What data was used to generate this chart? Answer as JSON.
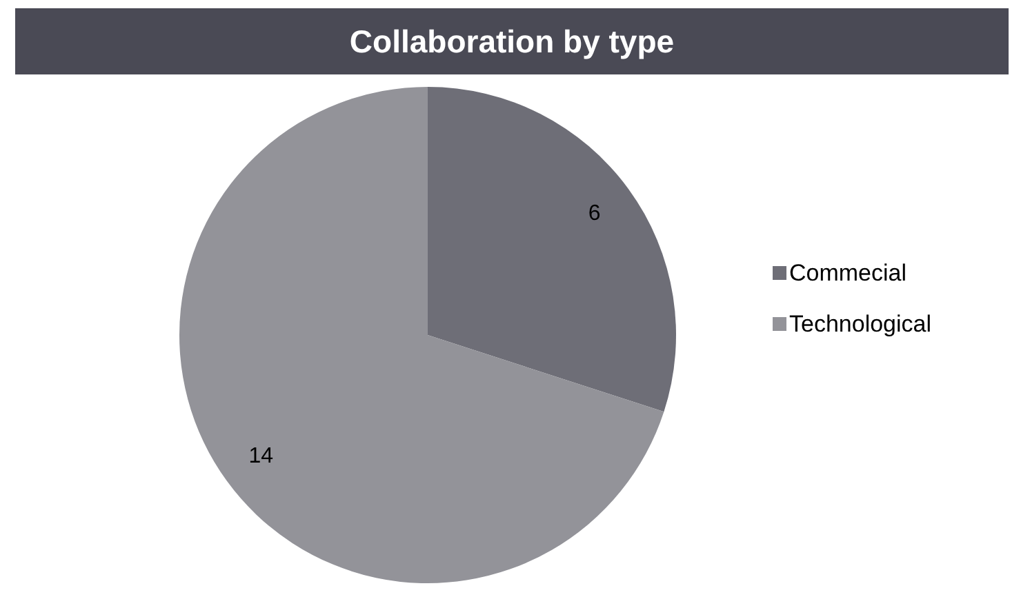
{
  "chart_data": {
    "type": "pie",
    "title": "Collaboration by type",
    "categories": [
      "Commecial",
      "Technological"
    ],
    "values": [
      6,
      14
    ],
    "colors": [
      "#6e6e77",
      "#939399"
    ],
    "data_labels": true,
    "legend": "right"
  }
}
